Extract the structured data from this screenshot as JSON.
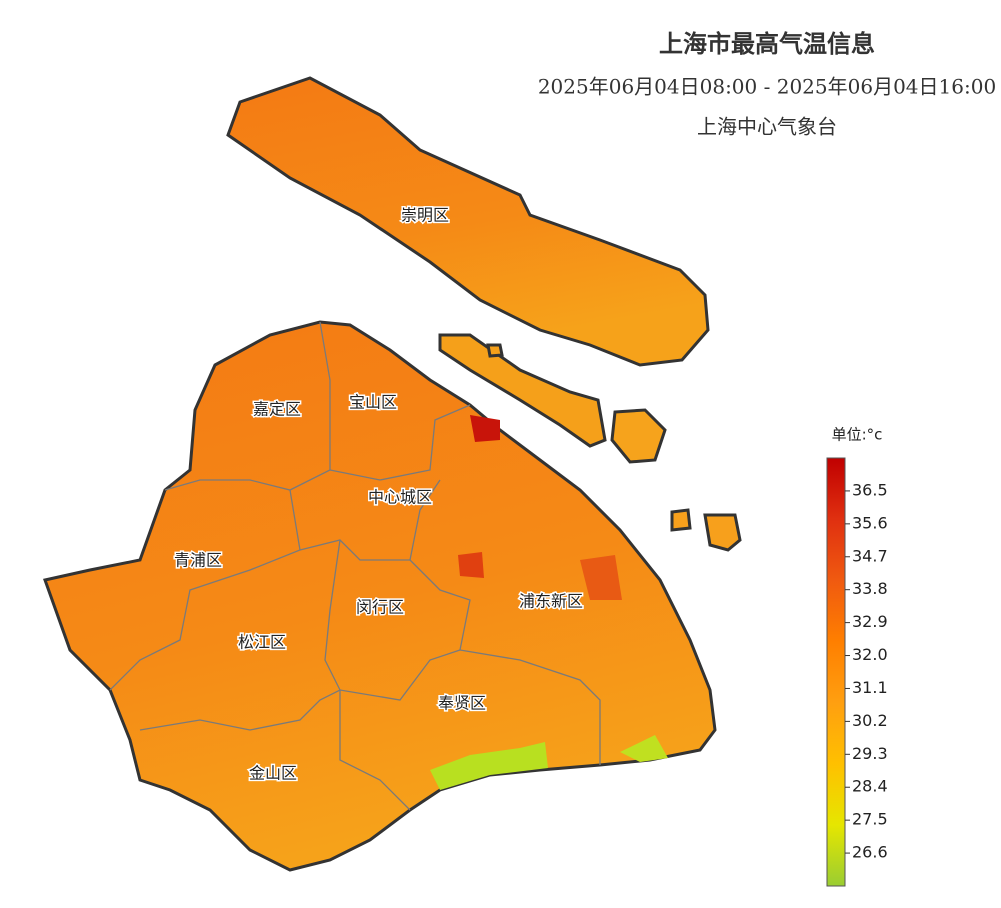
{
  "title": "上海市最高气温信息",
  "subtitle": "2025年06月04日08:00 - 2025年06月04日16:00",
  "source": "上海中心气象台",
  "districts": [
    {
      "label": "崇明区"
    },
    {
      "label": "嘉定区"
    },
    {
      "label": "宝山区"
    },
    {
      "label": "中心城区"
    },
    {
      "label": "青浦区"
    },
    {
      "label": "闵行区"
    },
    {
      "label": "浦东新区"
    },
    {
      "label": "松江区"
    },
    {
      "label": "奉贤区"
    },
    {
      "label": "金山区"
    }
  ],
  "legend": {
    "unit": "单位:°c",
    "range": [
      25.7,
      37.4
    ],
    "ticks": [
      36.5,
      35.6,
      34.7,
      33.8,
      32.9,
      {
        "value": 32,
        "label": "32.0"
      },
      31.1,
      30.2,
      29.3,
      28.4,
      27.5,
      26.6
    ],
    "colors": [
      "#9acd32",
      "#e6e600",
      "#ffc000",
      "#ff9f10",
      "#ff7f00",
      "#f05a10",
      "#e03010",
      "#c00000"
    ]
  }
}
